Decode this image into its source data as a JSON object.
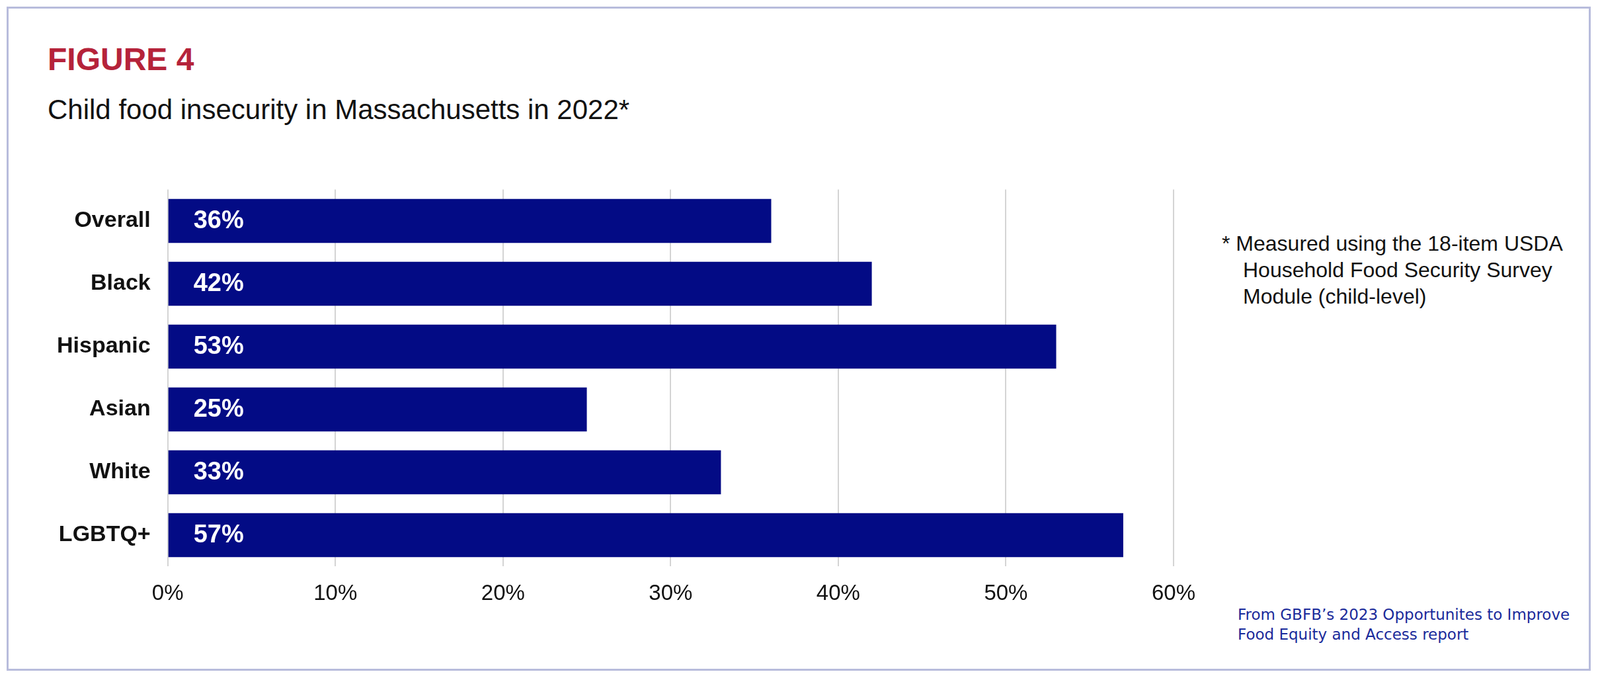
{
  "chart_data": {
    "type": "bar",
    "orientation": "horizontal",
    "title": "FIGURE 4",
    "subtitle": "Child food insecurity in Massachusetts in 2022*",
    "annotations": [
      "* Measured using the 18-item USDA Household Food Security Survey Module (child-level)",
      "From GBFB’s 2023 Opportunites to Improve Food Equity and Access report"
    ],
    "categories": [
      "Overall",
      "Black",
      "Hispanic",
      "Asian",
      "White",
      "LGBTQ+"
    ],
    "values": [
      36,
      42,
      53,
      25,
      33,
      57
    ],
    "value_labels": [
      "36%",
      "42%",
      "53%",
      "25%",
      "33%",
      "57%"
    ],
    "data_labels": true,
    "color": "#030b85",
    "xlim": [
      0,
      60
    ],
    "xticks": [
      {
        "value": 0,
        "label": "0%"
      },
      {
        "value": 10,
        "label": "10%"
      },
      {
        "value": 20,
        "label": "20%"
      },
      {
        "value": 30,
        "label": "30%"
      },
      {
        "value": 40,
        "label": "40%"
      },
      {
        "value": 50,
        "label": "50%"
      },
      {
        "value": 60,
        "label": "60%"
      }
    ],
    "grid": true
  }
}
